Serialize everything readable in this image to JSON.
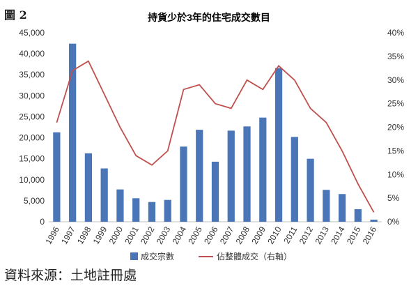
{
  "figure_label": "圖 2",
  "source_text": "資料來源：土地註冊處",
  "chart_data": {
    "type": "bar",
    "title": "持貨少於3年的住宅成交數目",
    "categories": [
      "1996",
      "1997",
      "1998",
      "1999",
      "2000",
      "2001",
      "2002",
      "2003",
      "2004",
      "2005",
      "2006",
      "2007",
      "2008",
      "2009",
      "2010",
      "2011",
      "2012",
      "2013",
      "2014",
      "2015",
      "2016"
    ],
    "series": [
      {
        "name": "成交宗數",
        "type": "bar",
        "axis": "left",
        "color": "#4a76b8",
        "values": [
          21300,
          42400,
          16300,
          12700,
          7700,
          5600,
          4700,
          5200,
          17900,
          21900,
          14300,
          21700,
          22700,
          24800,
          36600,
          20200,
          15000,
          7600,
          6600,
          3000,
          500
        ]
      },
      {
        "name": "佔整體成交（右軸）",
        "type": "line",
        "axis": "right",
        "color": "#c0504d",
        "values": [
          21,
          32,
          34,
          27,
          20,
          14,
          12,
          15,
          28,
          29,
          25,
          24,
          30,
          28,
          33,
          30,
          24,
          21,
          15,
          8,
          2
        ]
      }
    ],
    "ylim": [
      0,
      45000
    ],
    "yticks": [
      "0",
      "5,000",
      "10,000",
      "15,000",
      "20,000",
      "25,000",
      "30,000",
      "35,000",
      "40,000",
      "45,000"
    ],
    "y2lim": [
      0,
      40
    ],
    "y2ticks": [
      "0%",
      "5%",
      "10%",
      "15%",
      "20%",
      "25%",
      "30%",
      "35%",
      "40%"
    ],
    "grid": false,
    "legend_position": "bottom"
  }
}
